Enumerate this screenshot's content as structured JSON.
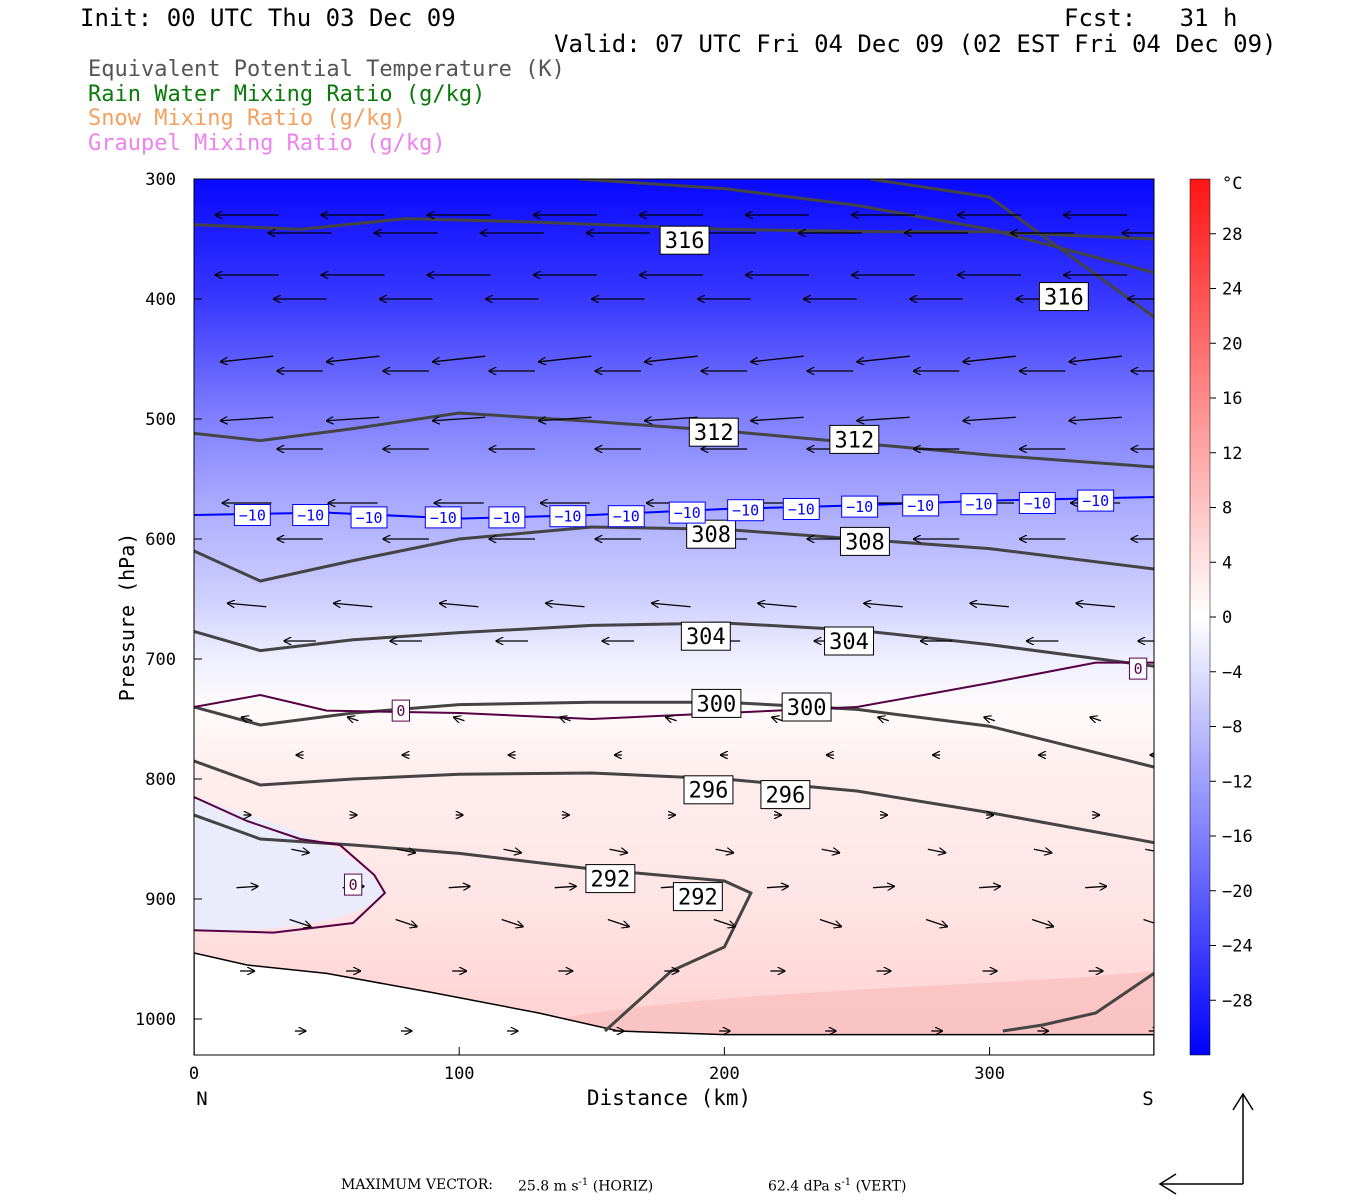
{
  "header": {
    "init": "Init: 00 UTC Thu 03 Dec 09",
    "fcst": "Fcst:   31 h",
    "valid": "Valid: 07 UTC Fri 04 Dec 09 (02 EST Fri 04 Dec 09)"
  },
  "legend": [
    {
      "label": "Equivalent Potential Temperature (K)",
      "color": "#555555"
    },
    {
      "label": "Rain Water Mixing Ratio (g/kg)",
      "color": "#0a7a0a"
    },
    {
      "label": "Snow Mixing Ratio (g/kg)",
      "color": "#f4a060"
    },
    {
      "label": "Graupel Mixing Ratio (g/kg)",
      "color": "#ee82ee"
    }
  ],
  "footer": {
    "max_vector_label": "MAXIMUM VECTOR:",
    "horiz": "25.8 m s",
    "horiz_sup": "-1",
    "horiz_tag": "(HORIZ)",
    "vert": "62.4 dPa s",
    "vert_sup": "-1",
    "vert_tag": "(VERT)"
  },
  "chart_data": {
    "type": "heatmap",
    "title": "",
    "xlabel": "Distance (km)",
    "ylabel": "Pressure (hPa)",
    "xlim": [
      0,
      362
    ],
    "ylim": [
      1030,
      300
    ],
    "x_ticks": [
      0,
      100,
      200,
      300
    ],
    "y_ticks": [
      300,
      400,
      500,
      600,
      700,
      800,
      900,
      1000
    ],
    "x_end_labels": {
      "left": "N",
      "right": "S"
    },
    "colorbar": {
      "unit": "°C",
      "range": [
        -32,
        32
      ],
      "tick_values": [
        28,
        24,
        20,
        16,
        12,
        8,
        4,
        0,
        -4,
        -8,
        -12,
        -16,
        -20,
        -24,
        -28
      ],
      "tick_labels": [
        "28",
        "24",
        "20",
        "16",
        "12",
        "8",
        "4",
        "0",
        "−4",
        "−8",
        "−12",
        "−16",
        "−20",
        "−24",
        "−28"
      ]
    },
    "temperature_field": [
      {
        "p": 300,
        "t": -31
      },
      {
        "p": 400,
        "t": -25
      },
      {
        "p": 500,
        "t": -16
      },
      {
        "p": 580,
        "t": -10
      },
      {
        "p": 650,
        "t": -6
      },
      {
        "p": 700,
        "t": -2
      },
      {
        "p": 740,
        "t": 0.5
      },
      {
        "p": 800,
        "t": 2.5
      },
      {
        "p": 900,
        "t": 3.5
      },
      {
        "p": 1000,
        "t": 6
      }
    ],
    "theta_e_contours": [
      {
        "label": "316",
        "points": [
          [
            0,
            338
          ],
          [
            40,
            342
          ],
          [
            80,
            333
          ],
          [
            130,
            336
          ],
          [
            200,
            342
          ],
          [
            260,
            344
          ],
          [
            300,
            344
          ],
          [
            362,
            350
          ]
        ]
      },
      {
        "label": "316",
        "points": [
          [
            145,
            300
          ],
          [
            200,
            308
          ],
          [
            250,
            322
          ],
          [
            300,
            342
          ],
          [
            362,
            378
          ]
        ]
      },
      {
        "label": "316",
        "points": [
          [
            255,
            300
          ],
          [
            300,
            315
          ],
          [
            362,
            415
          ]
        ]
      },
      {
        "label": "312",
        "points": [
          [
            0,
            512
          ],
          [
            25,
            518
          ],
          [
            60,
            508
          ],
          [
            100,
            495
          ],
          [
            150,
            502
          ],
          [
            200,
            510
          ],
          [
            250,
            520
          ],
          [
            300,
            530
          ],
          [
            362,
            540
          ]
        ]
      },
      {
        "label": "308",
        "points": [
          [
            0,
            610
          ],
          [
            25,
            635
          ],
          [
            60,
            618
          ],
          [
            100,
            600
          ],
          [
            150,
            590
          ],
          [
            200,
            592
          ],
          [
            250,
            600
          ],
          [
            300,
            608
          ],
          [
            362,
            625
          ]
        ]
      },
      {
        "label": "304",
        "points": [
          [
            0,
            677
          ],
          [
            25,
            693
          ],
          [
            60,
            684
          ],
          [
            100,
            678
          ],
          [
            150,
            672
          ],
          [
            200,
            670
          ],
          [
            250,
            676
          ],
          [
            300,
            688
          ],
          [
            362,
            706
          ]
        ]
      },
      {
        "label": "300",
        "points": [
          [
            0,
            740
          ],
          [
            25,
            755
          ],
          [
            60,
            745
          ],
          [
            100,
            738
          ],
          [
            150,
            736
          ],
          [
            200,
            736
          ],
          [
            250,
            742
          ],
          [
            300,
            756
          ],
          [
            362,
            790
          ]
        ]
      },
      {
        "label": "296",
        "points": [
          [
            0,
            785
          ],
          [
            25,
            805
          ],
          [
            60,
            800
          ],
          [
            100,
            796
          ],
          [
            150,
            795
          ],
          [
            200,
            800
          ],
          [
            250,
            810
          ],
          [
            300,
            828
          ],
          [
            362,
            853
          ]
        ]
      },
      {
        "label": "292",
        "points": [
          [
            0,
            830
          ],
          [
            25,
            850
          ],
          [
            60,
            855
          ],
          [
            100,
            862
          ],
          [
            150,
            875
          ],
          [
            200,
            885
          ],
          [
            210,
            895
          ],
          [
            200,
            940
          ],
          [
            180,
            960
          ],
          [
            155,
            1010
          ]
        ]
      },
      {
        "label": "",
        "points": [
          [
            305,
            1010
          ],
          [
            320,
            1005
          ],
          [
            340,
            995
          ],
          [
            350,
            980
          ],
          [
            362,
            962
          ]
        ]
      }
    ],
    "isotherms": [
      {
        "label": "−10",
        "color": "#0000ff",
        "points": [
          [
            0,
            580
          ],
          [
            50,
            578
          ],
          [
            100,
            583
          ],
          [
            150,
            580
          ],
          [
            200,
            575
          ],
          [
            250,
            572
          ],
          [
            300,
            568
          ],
          [
            362,
            565
          ]
        ]
      },
      {
        "label": "0",
        "color": "#550044",
        "points": [
          [
            0,
            740
          ],
          [
            25,
            730
          ],
          [
            50,
            743
          ],
          [
            100,
            745
          ],
          [
            150,
            750
          ],
          [
            200,
            745
          ],
          [
            250,
            740
          ],
          [
            300,
            720
          ],
          [
            340,
            703
          ],
          [
            362,
            703
          ]
        ]
      },
      {
        "label": "0",
        "color": "#550044",
        "points": [
          [
            0,
            815
          ],
          [
            20,
            835
          ],
          [
            40,
            850
          ],
          [
            55,
            855
          ],
          [
            68,
            880
          ],
          [
            72,
            895
          ],
          [
            60,
            920
          ],
          [
            30,
            928
          ],
          [
            0,
            926
          ]
        ]
      }
    ],
    "box_labels": [
      {
        "text": "316",
        "x": 185,
        "p": 351,
        "color": "#000000"
      },
      {
        "text": "316",
        "x": 328,
        "p": 398,
        "color": "#000000"
      },
      {
        "text": "312",
        "x": 196,
        "p": 511,
        "color": "#000000"
      },
      {
        "text": "312",
        "x": 249,
        "p": 517,
        "color": "#000000"
      },
      {
        "text": "308",
        "x": 195,
        "p": 596,
        "color": "#000000"
      },
      {
        "text": "308",
        "x": 253,
        "p": 602,
        "color": "#000000"
      },
      {
        "text": "304",
        "x": 193,
        "p": 681,
        "color": "#000000"
      },
      {
        "text": "304",
        "x": 247,
        "p": 685,
        "color": "#000000"
      },
      {
        "text": "300",
        "x": 197,
        "p": 737,
        "color": "#000000"
      },
      {
        "text": "300",
        "x": 231,
        "p": 740,
        "color": "#000000"
      },
      {
        "text": "296",
        "x": 194,
        "p": 809,
        "color": "#000000"
      },
      {
        "text": "296",
        "x": 223,
        "p": 813,
        "color": "#000000"
      },
      {
        "text": "292",
        "x": 157,
        "p": 883,
        "color": "#000000"
      },
      {
        "text": "292",
        "x": 190,
        "p": 898,
        "color": "#000000"
      },
      {
        "text": "0",
        "x": 78,
        "p": 743,
        "color": "#550044"
      },
      {
        "text": "0",
        "x": 60,
        "p": 888,
        "color": "#550044"
      },
      {
        "text": "0",
        "x": 356,
        "p": 708,
        "color": "#550044"
      },
      {
        "text": "−10",
        "x": 22,
        "p": 580,
        "color": "#0000ff"
      },
      {
        "text": "−10",
        "x": 44,
        "p": 580,
        "color": "#0000ff"
      },
      {
        "text": "−10",
        "x": 66,
        "p": 582,
        "color": "#0000ff"
      },
      {
        "text": "−10",
        "x": 94,
        "p": 582,
        "color": "#0000ff"
      },
      {
        "text": "−10",
        "x": 118,
        "p": 582,
        "color": "#0000ff"
      },
      {
        "text": "−10",
        "x": 141,
        "p": 581,
        "color": "#0000ff"
      },
      {
        "text": "−10",
        "x": 163,
        "p": 581,
        "color": "#0000ff"
      },
      {
        "text": "−10",
        "x": 186,
        "p": 578,
        "color": "#0000ff"
      },
      {
        "text": "−10",
        "x": 208,
        "p": 576,
        "color": "#0000ff"
      },
      {
        "text": "−10",
        "x": 229,
        "p": 575,
        "color": "#0000ff"
      },
      {
        "text": "−10",
        "x": 251,
        "p": 573,
        "color": "#0000ff"
      },
      {
        "text": "−10",
        "x": 274,
        "p": 572,
        "color": "#0000ff"
      },
      {
        "text": "−10",
        "x": 296,
        "p": 571,
        "color": "#0000ff"
      },
      {
        "text": "−10",
        "x": 318,
        "p": 570,
        "color": "#0000ff"
      },
      {
        "text": "−10",
        "x": 340,
        "p": 568,
        "color": "#0000ff"
      }
    ],
    "wind_vectors": {
      "columns_km": [
        20,
        40,
        60,
        80,
        100,
        120,
        140,
        160,
        180,
        200,
        220,
        240,
        260,
        280,
        300,
        320,
        340,
        362
      ],
      "rows": [
        {
          "p": 330,
          "u": -0.9,
          "w": 0.0
        },
        {
          "p": 345,
          "u": -0.9,
          "w": 0.0
        },
        {
          "p": 380,
          "u": -0.9,
          "w": 0.0
        },
        {
          "p": 400,
          "u": -0.75,
          "w": 0.0
        },
        {
          "p": 450,
          "u": -0.75,
          "w": -0.08
        },
        {
          "p": 460,
          "u": -0.65,
          "w": 0.0
        },
        {
          "p": 500,
          "u": -0.75,
          "w": -0.05
        },
        {
          "p": 525,
          "u": -0.65,
          "w": 0.0
        },
        {
          "p": 570,
          "u": -0.7,
          "w": 0.0
        },
        {
          "p": 600,
          "u": -0.65,
          "w": 0.0
        },
        {
          "p": 655,
          "u": -0.55,
          "w": 0.05
        },
        {
          "p": 685,
          "u": -0.45,
          "w": 0.0
        },
        {
          "p": 750,
          "u": -0.15,
          "w": 0.05
        },
        {
          "p": 780,
          "u": -0.1,
          "w": 0.0
        },
        {
          "p": 830,
          "u": 0.1,
          "w": 0.0
        },
        {
          "p": 860,
          "u": 0.25,
          "w": -0.05
        },
        {
          "p": 890,
          "u": 0.3,
          "w": 0.02
        },
        {
          "p": 920,
          "u": 0.3,
          "w": -0.1
        },
        {
          "p": 960,
          "u": 0.2,
          "w": 0.0
        },
        {
          "p": 1010,
          "u": 0.15,
          "w": 0.0
        }
      ]
    }
  }
}
